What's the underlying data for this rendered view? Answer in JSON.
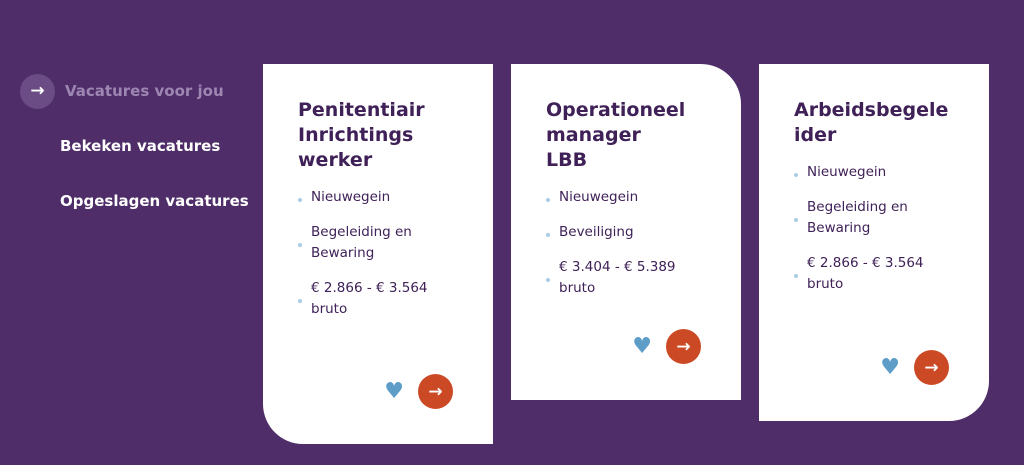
{
  "nav": {
    "items": [
      {
        "label": "Vacatures voor jou",
        "active": true
      },
      {
        "label": "Bekeken vacatures"
      },
      {
        "label": "Opgeslagen vacatures"
      }
    ]
  },
  "icons": {
    "arrow": "→",
    "heart": "♥"
  },
  "colors": {
    "background": "#4f2d69",
    "accent": "#cb4a25",
    "heart": "#5f9dc9",
    "title": "#3f2158"
  },
  "cards": [
    {
      "title": "Penitentiair Inrichtings werker",
      "location": "Nieuwegein",
      "category": "Begeleiding en Bewaring",
      "salary": "€ 2.866 - € 3.564 bruto"
    },
    {
      "title": "Operationeel manager LBB",
      "location": "Nieuwegein",
      "category": "Beveiliging",
      "salary": "€ 3.404 - € 5.389 bruto"
    },
    {
      "title": "Arbeidsbegeleider",
      "location": "Nieuwegein",
      "category": "Begeleiding en Bewaring",
      "salary": "€ 2.866 - € 3.564 bruto"
    }
  ]
}
